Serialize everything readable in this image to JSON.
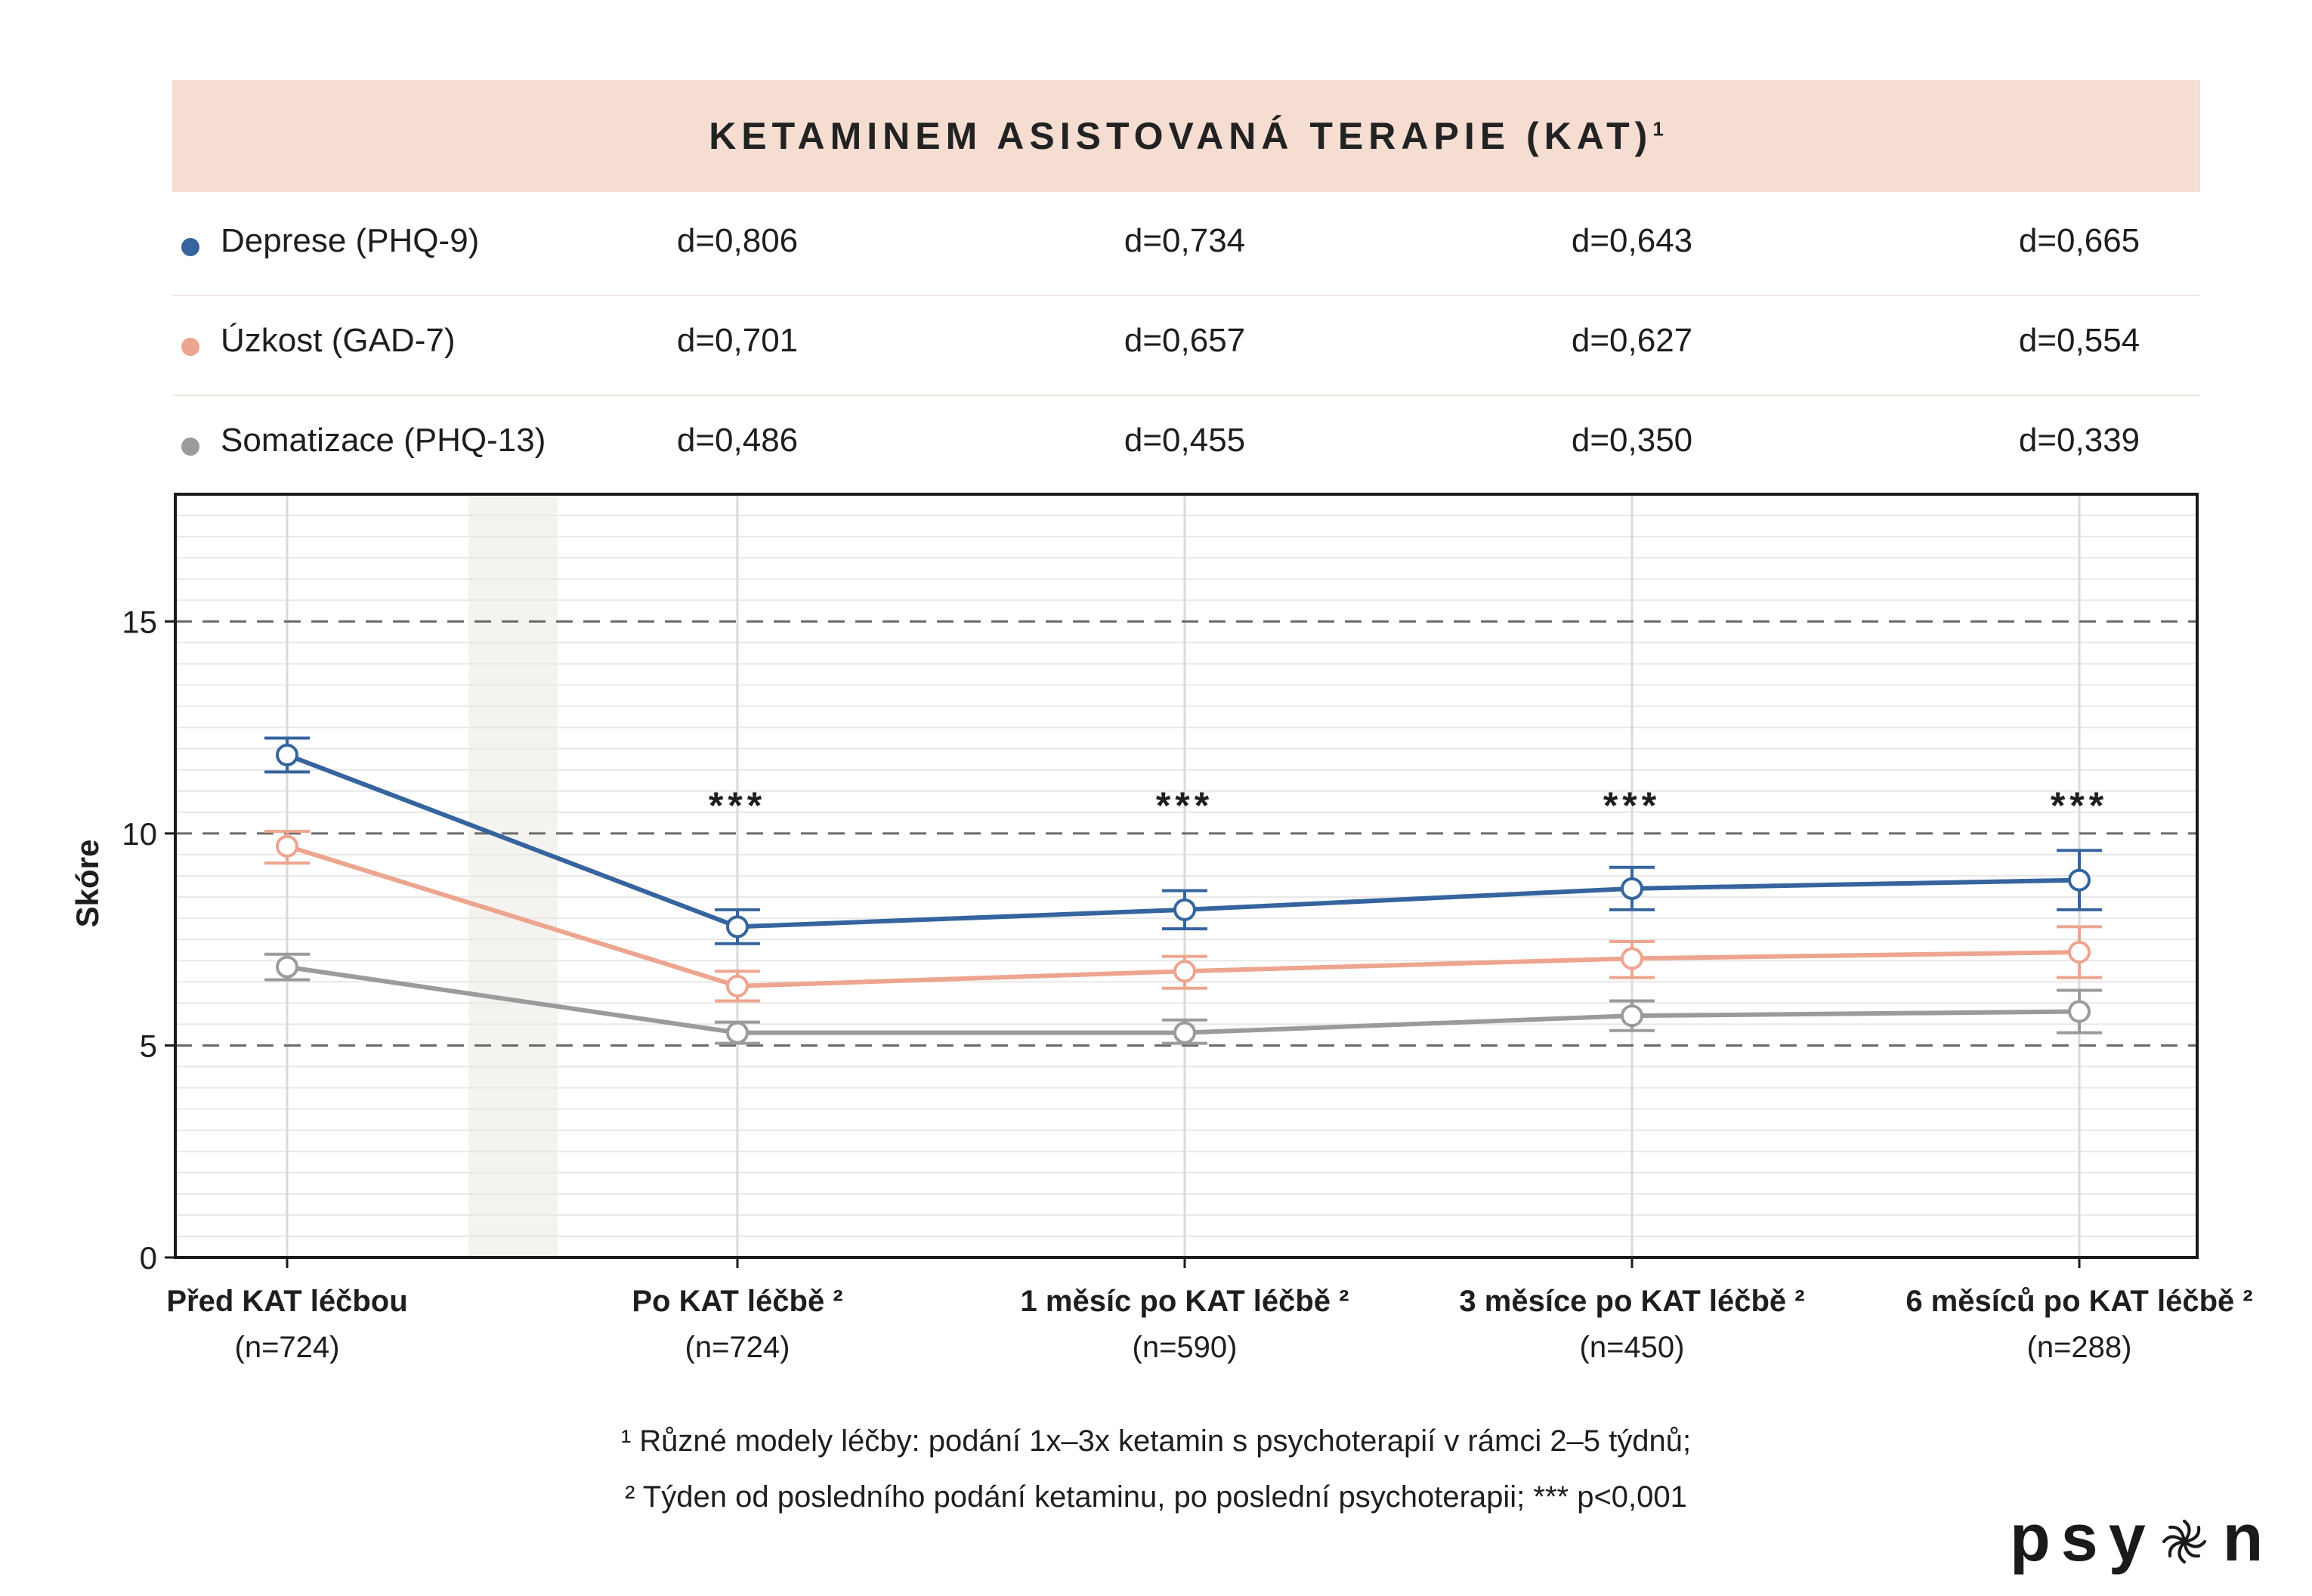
{
  "header": {
    "title": "KETAMINEM ASISTOVANÁ TERAPIE (KAT)",
    "title_superscript": "1"
  },
  "effect_sizes": [
    {
      "label": "Deprese (PHQ-9)",
      "color": "#35649e",
      "values": [
        "d=0,806",
        "d=0,734",
        "d=0,643",
        "d=0,665"
      ]
    },
    {
      "label": "Úzkost (GAD-7)",
      "color": "#eda58f",
      "values": [
        "d=0,701",
        "d=0,657",
        "d=0,627",
        "d=0,554"
      ]
    },
    {
      "label": "Somatizace (PHQ-13)",
      "color": "#9b9b9b",
      "values": [
        "d=0,486",
        "d=0,455",
        "d=0,350",
        "d=0,339"
      ]
    }
  ],
  "x_labels": [
    {
      "main": "Před KAT léčbou",
      "n": "(n=724)"
    },
    {
      "main": "Po KAT léčbě ²",
      "n": "(n=724)"
    },
    {
      "main": "1 měsíc po KAT léčbě ²",
      "n": "(n=590)"
    },
    {
      "main": "3 měsíce po KAT léčbě ²",
      "n": "(n=450)"
    },
    {
      "main": "6 měsíců po KAT léčbě ²",
      "n": "(n=288)"
    }
  ],
  "footnotes": [
    "¹ Různé modely léčby: podání 1x–3x ketamin s psychoterapií v rámci 2–5 týdnů;",
    "² Týden od posledního podání ketaminu, po poslední psychoterapii; *** p<0,001"
  ],
  "logo": {
    "part1": "psy",
    "part2": "n"
  },
  "chart_data": {
    "type": "line",
    "title": "KETAMINEM ASISTOVANÁ TERAPIE (KAT)",
    "xlabel": "",
    "ylabel": "Skóre",
    "categories": [
      "Před KAT léčbou",
      "Po KAT léčbě",
      "1 měsíc po KAT léčbě",
      "3 měsíce po KAT léčbě",
      "6 měsíců po KAT léčbě"
    ],
    "ylim": [
      0,
      18
    ],
    "yticks": [
      0,
      5,
      10,
      15
    ],
    "grid": true,
    "dashed_lines": [
      5,
      10,
      15
    ],
    "significance": [
      "",
      "***",
      "***",
      "***",
      "***"
    ],
    "series": [
      {
        "name": "Deprese (PHQ-9)",
        "color": "#35649e",
        "values": [
          11.85,
          7.8,
          8.2,
          8.7,
          8.9
        ],
        "err_low": [
          11.45,
          7.4,
          7.75,
          8.2,
          8.2
        ],
        "err_high": [
          12.25,
          8.2,
          8.65,
          9.2,
          9.6
        ]
      },
      {
        "name": "Úzkost (GAD-7)",
        "color": "#eda58f",
        "values": [
          9.7,
          6.4,
          6.75,
          7.05,
          7.2
        ],
        "err_low": [
          9.3,
          6.05,
          6.35,
          6.6,
          6.6
        ],
        "err_high": [
          10.05,
          6.75,
          7.1,
          7.45,
          7.8
        ]
      },
      {
        "name": "Somatizace (PHQ-13)",
        "color": "#9b9b9b",
        "values": [
          6.85,
          5.3,
          5.3,
          5.7,
          5.8
        ],
        "err_low": [
          6.55,
          5.05,
          5.05,
          5.35,
          5.3
        ],
        "err_high": [
          7.15,
          5.55,
          5.6,
          6.05,
          6.3
        ]
      }
    ]
  }
}
